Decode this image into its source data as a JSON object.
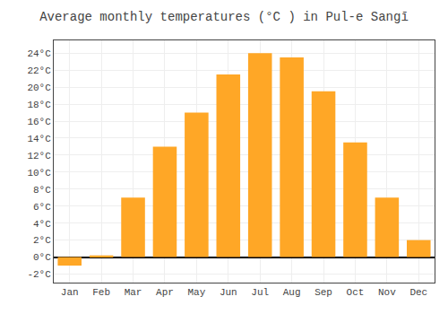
{
  "chart_data": {
    "type": "bar",
    "title": "Average monthly temperatures (°C ) in Pul-e Sangī",
    "categories": [
      "Jan",
      "Feb",
      "Mar",
      "Apr",
      "May",
      "Jun",
      "Jul",
      "Aug",
      "Sep",
      "Oct",
      "Nov",
      "Dec"
    ],
    "values": [
      -1.0,
      0.2,
      7.0,
      13.0,
      17.0,
      21.5,
      24.0,
      23.5,
      19.5,
      13.5,
      7.0,
      2.0
    ],
    "color": "#FFA726",
    "ylim": [
      -3,
      25.5
    ],
    "yticks": [
      {
        "value": -2,
        "label": "-2°C"
      },
      {
        "value": 0,
        "label": "0°C"
      },
      {
        "value": 2,
        "label": "2°C"
      },
      {
        "value": 4,
        "label": "4°C"
      },
      {
        "value": 6,
        "label": "6°C"
      },
      {
        "value": 8,
        "label": "8°C"
      },
      {
        "value": 10,
        "label": "10°C"
      },
      {
        "value": 12,
        "label": "12°C"
      },
      {
        "value": 14,
        "label": "14°C"
      },
      {
        "value": 16,
        "label": "16°C"
      },
      {
        "value": 18,
        "label": "18°C"
      },
      {
        "value": 20,
        "label": "20°C"
      },
      {
        "value": 22,
        "label": "22°C"
      },
      {
        "value": 24,
        "label": "24°C"
      }
    ],
    "grid": true
  }
}
